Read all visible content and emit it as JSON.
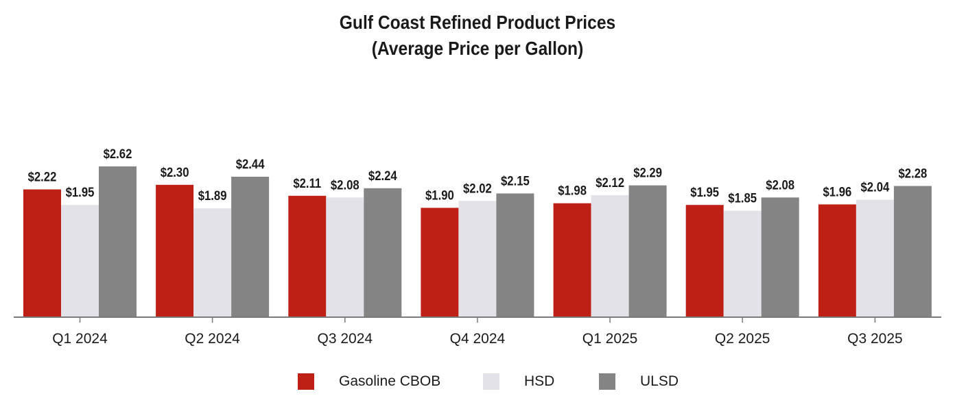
{
  "chart_data": {
    "type": "bar",
    "title": "Gulf Coast Refined Product Prices",
    "subtitle": "(Average Price per Gallon)",
    "xlabel": "",
    "ylabel": "",
    "ylim": [
      0,
      2.75
    ],
    "grid": false,
    "legend_position": "bottom-center",
    "categories": [
      "Q1 2024",
      "Q2 2024",
      "Q3 2024",
      "Q4 2024",
      "Q1 2025",
      "Q2 2025",
      "Q3 2025"
    ],
    "series": [
      {
        "name": "Gasoline CBOB",
        "color": "#bf2015",
        "values": [
          2.22,
          2.3,
          2.11,
          1.9,
          1.98,
          1.95,
          1.96
        ],
        "labels": [
          "$2.22",
          "$2.30",
          "$2.11",
          "$1.90",
          "$1.98",
          "$1.95",
          "$1.96"
        ]
      },
      {
        "name": "HSD",
        "color": "#e2e2e8",
        "values": [
          1.95,
          1.89,
          2.08,
          2.02,
          2.12,
          1.85,
          2.04
        ],
        "labels": [
          "$1.95",
          "$1.89",
          "$2.08",
          "$2.02",
          "$2.12",
          "$1.85",
          "$2.04"
        ]
      },
      {
        "name": "ULSD",
        "color": "#848484",
        "values": [
          2.62,
          2.44,
          2.24,
          2.15,
          2.29,
          2.08,
          2.28
        ],
        "labels": [
          "$2.62",
          "$2.44",
          "$2.24",
          "$2.15",
          "$2.29",
          "$2.08",
          "$2.28"
        ]
      }
    ],
    "axis_color": "#7a7a7a"
  }
}
